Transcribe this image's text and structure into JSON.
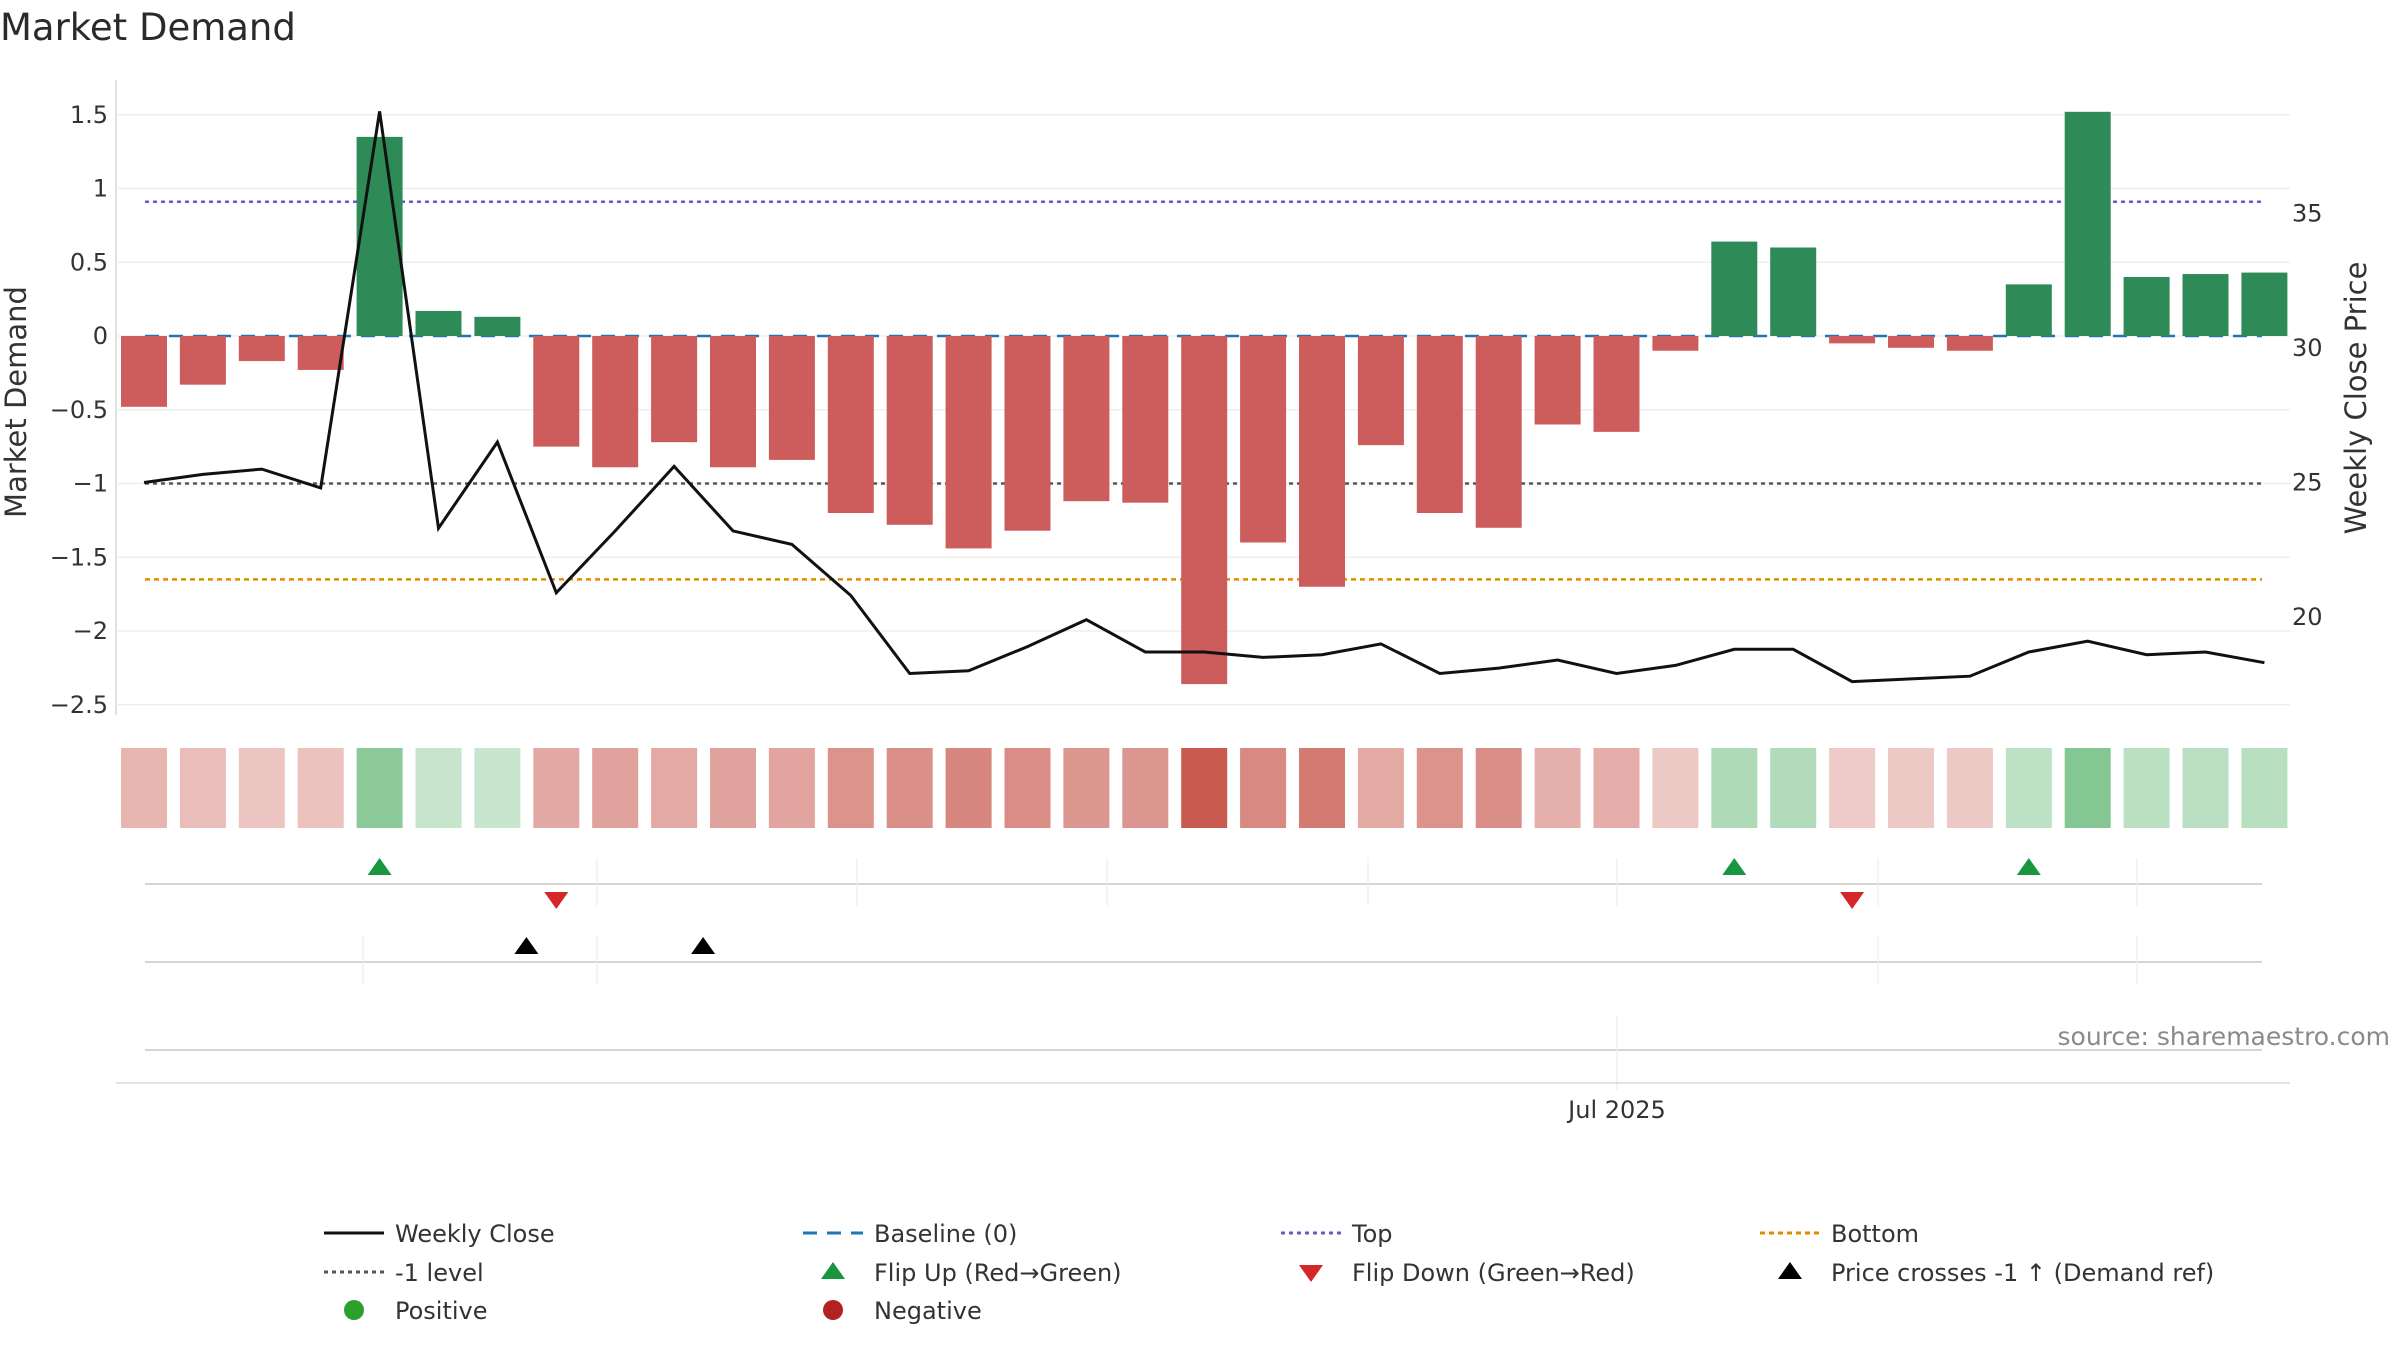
{
  "chart_data": {
    "type": "bar",
    "title": "Market Demand",
    "ylabel_left": "Market Demand",
    "ylabel_right": "Weekly Close Price",
    "ylim_left": [
      -2.6,
      1.5
    ],
    "ylim_right": [
      16.5,
      39
    ],
    "yticks_left": [
      1.5,
      1,
      0.5,
      0,
      -0.5,
      -1,
      -1.5,
      -2,
      -2.5
    ],
    "yticks_left_labels": [
      "1.5",
      "1",
      "0.5",
      "0",
      "−0.5",
      "−1",
      "−1.5",
      "−2",
      "−2.5"
    ],
    "yticks_right": [
      35,
      30,
      25,
      20
    ],
    "xtick_label": "Jul 2025",
    "source": "source: sharemaestro.com",
    "grid": true,
    "legend_position": "bottom",
    "colors": {
      "positive": "#2e8b57",
      "negative": "#cd5c5c",
      "price_line": "#111111",
      "baseline": "#1f77b4",
      "top": "#6a5acd",
      "bottom": "#e08a00",
      "minus_one": "#555555",
      "flip_up": "#1a9641",
      "flip_down": "#d62728",
      "price_cross": "#000000",
      "positive_dot": "#2ca02c",
      "negative_dot": "#b22222"
    },
    "demand": [
      -0.48,
      -0.33,
      -0.17,
      -0.23,
      1.35,
      0.17,
      0.13,
      -0.75,
      -0.89,
      -0.72,
      -0.89,
      -0.84,
      -1.2,
      -1.28,
      -1.44,
      -1.32,
      -1.12,
      -1.13,
      -2.36,
      -1.4,
      -1.7,
      -0.74,
      -1.2,
      -1.3,
      -0.6,
      -0.65,
      -0.1,
      0.64,
      0.6,
      -0.05,
      -0.08,
      -0.1,
      0.35,
      1.52,
      0.4,
      0.42,
      0.43
    ],
    "weekly_close": [
      25.0,
      25.3,
      25.5,
      24.8,
      38.8,
      23.3,
      26.5,
      20.9,
      23.2,
      25.6,
      23.2,
      22.7,
      20.8,
      17.9,
      18.0,
      18.9,
      19.9,
      18.7,
      18.7,
      18.5,
      18.6,
      19.0,
      17.9,
      18.1,
      18.4,
      17.9,
      18.2,
      18.8,
      18.8,
      17.6,
      17.7,
      17.8,
      18.7,
      19.1,
      18.6,
      18.7,
      18.3
    ],
    "reference_lines": {
      "baseline": 0,
      "top": 0.91,
      "minus_one": -1,
      "bottom": -1.65
    },
    "flip_up_indices": [
      4,
      27,
      32
    ],
    "flip_down_indices": [
      7,
      29
    ],
    "price_cross_indices": [
      6,
      9
    ],
    "legend": [
      {
        "label": "Weekly Close",
        "style": "line"
      },
      {
        "label": "Baseline (0)",
        "style": "dash"
      },
      {
        "label": "Top",
        "style": "dot-top"
      },
      {
        "label": "Bottom",
        "style": "dot-bottom"
      },
      {
        "label": "-1 level",
        "style": "dot-minus"
      },
      {
        "label": "Flip Up (Red→Green)",
        "style": "tri-up"
      },
      {
        "label": "Flip Down (Green→Red)",
        "style": "tri-down"
      },
      {
        "label": "Price crosses -1 ↑ (Demand ref)",
        "style": "tri-black"
      },
      {
        "label": "Positive",
        "style": "dot-pos"
      },
      {
        "label": "Negative",
        "style": "dot-neg"
      }
    ]
  }
}
